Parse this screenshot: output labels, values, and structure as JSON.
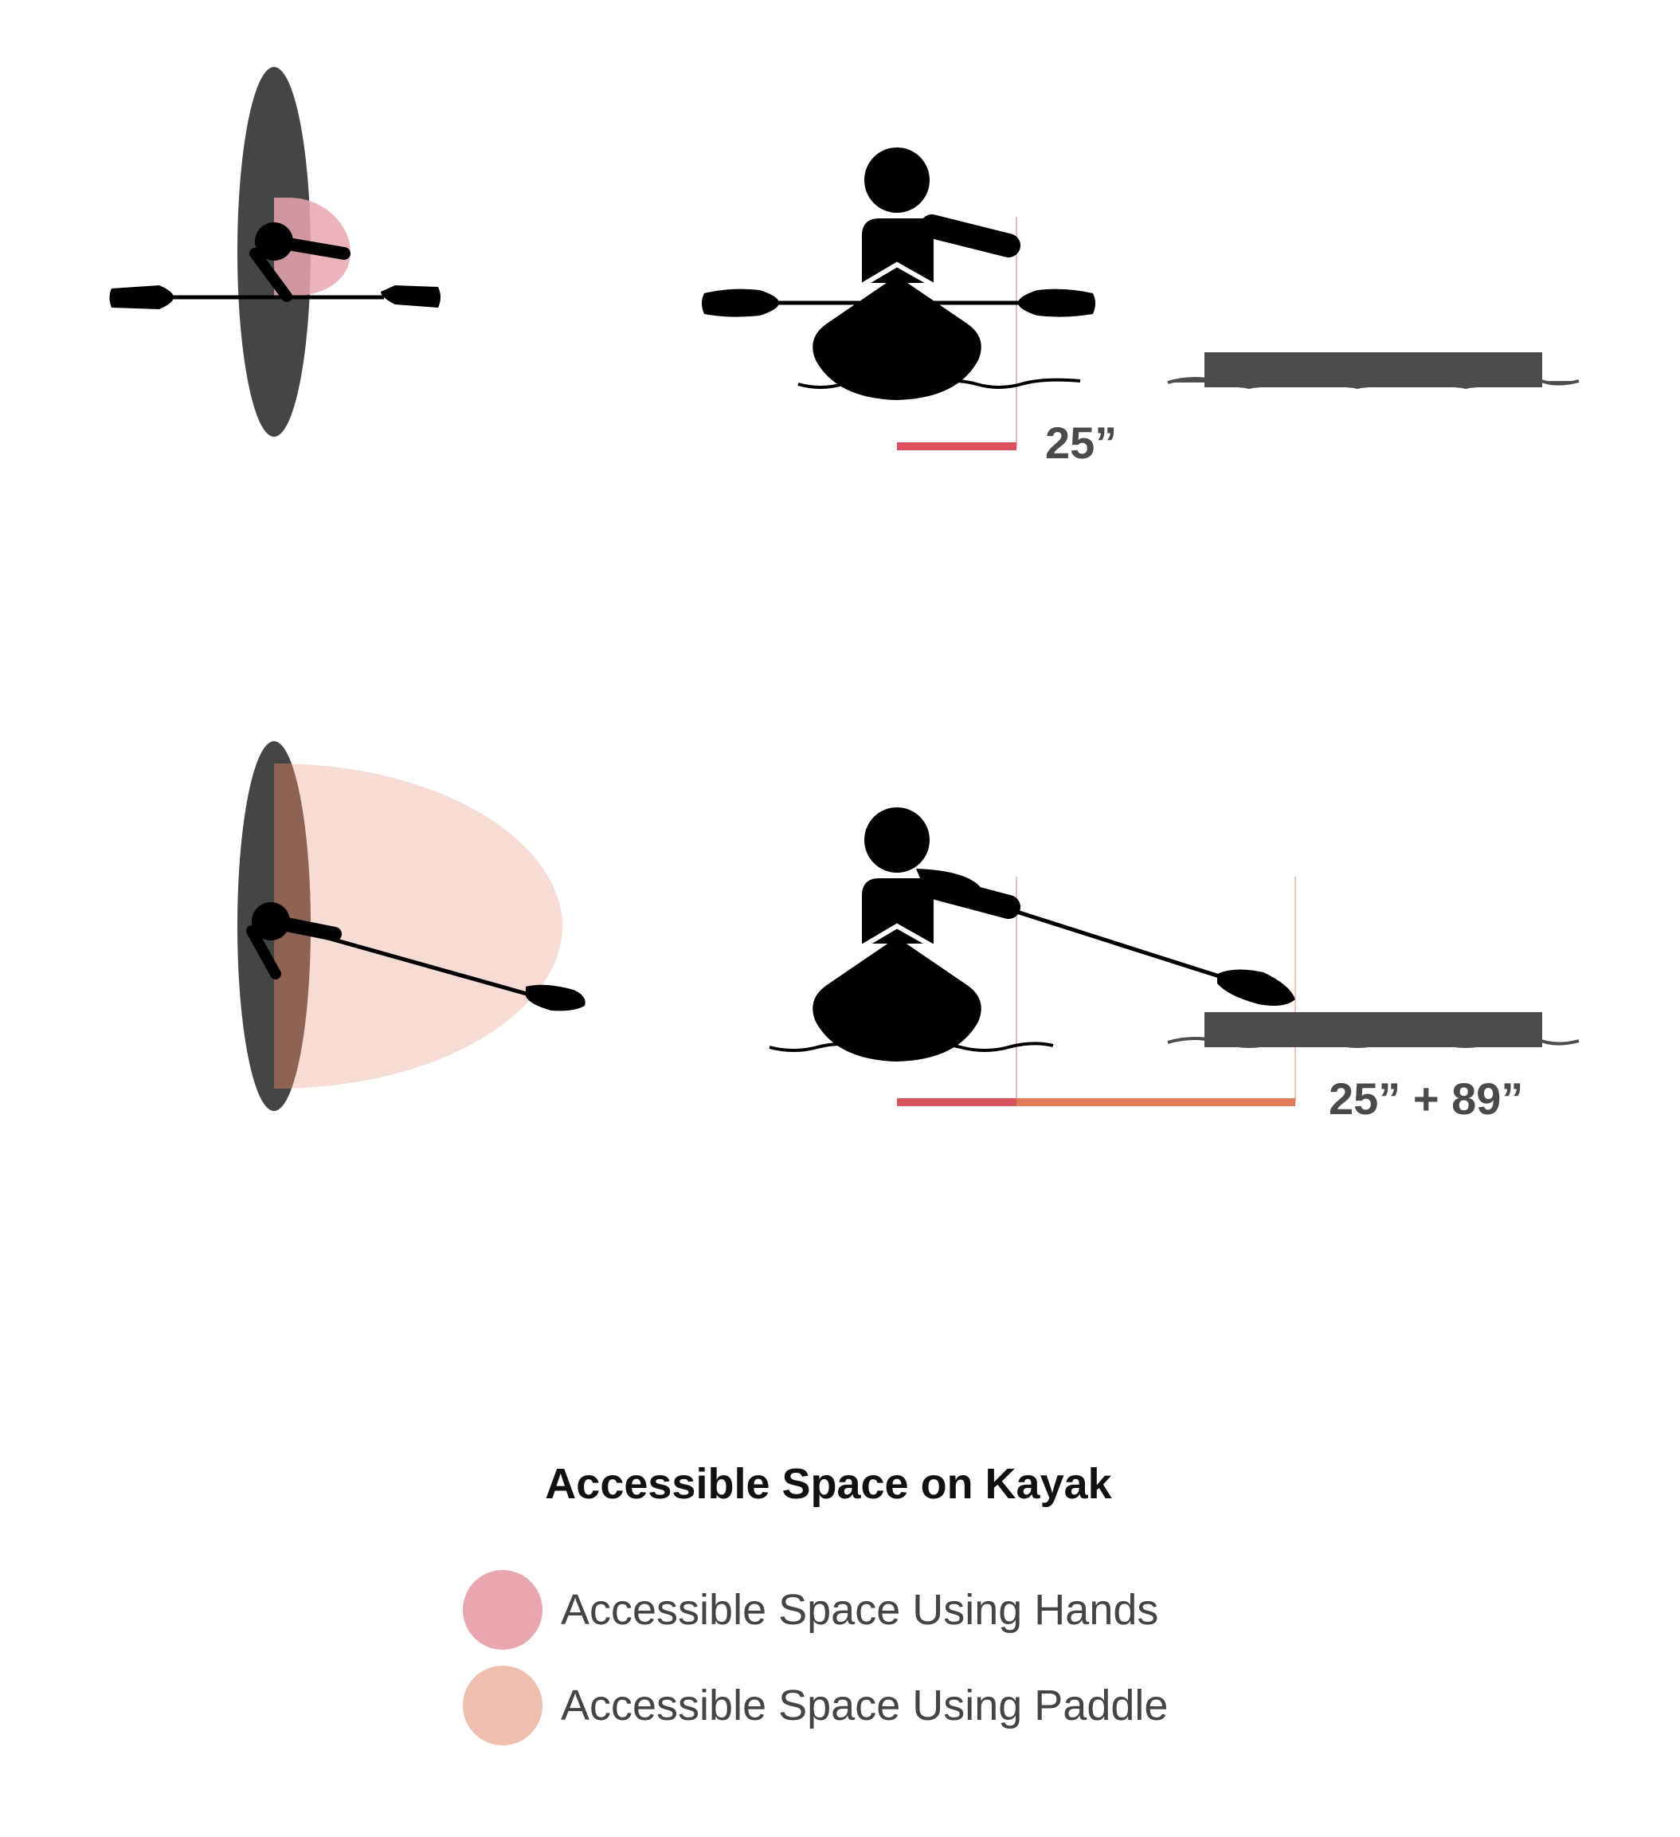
{
  "colors": {
    "hands": "#e8a7ae",
    "paddle": "#eebfae",
    "hands_line": "#d9535f",
    "paddle_line": "#e17a58",
    "kayak_top": "#454545",
    "dock": "#4d4d4d",
    "figure": "#000000"
  },
  "measurements": {
    "hands_label": "25”",
    "combined_label": "25” + 89”",
    "hands_inches": 25,
    "paddle_inches": 89
  },
  "legend": {
    "title": "Accessible Space on Kayak",
    "items": [
      {
        "label": "Accessible Space Using Hands",
        "color": "#e8a7ae"
      },
      {
        "label": "Accessible Space Using Paddle",
        "color": "#eebfae"
      }
    ]
  }
}
